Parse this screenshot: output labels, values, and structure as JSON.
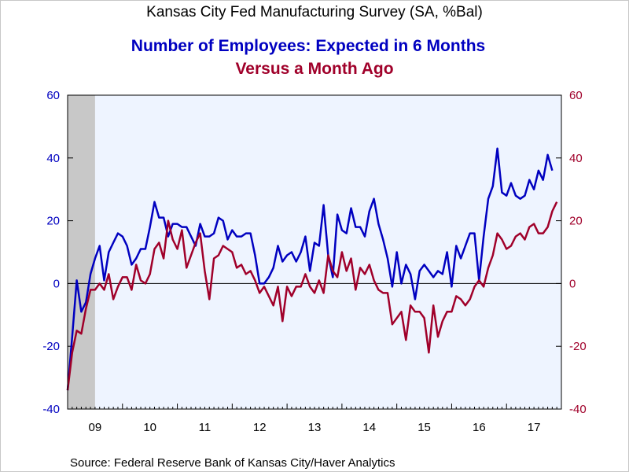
{
  "chart_data": {
    "type": "line",
    "title": "Kansas City Fed Manufacturing Survey (SA, %Bal)",
    "source": "Source:  Federal Reserve Bank of Kansas City/Haver Analytics",
    "x_start": "2009-01",
    "frequency": "monthly",
    "xlim": [
      "2009-01",
      "2017-12"
    ],
    "ylim": [
      -40,
      60
    ],
    "yticks": [
      -40,
      -20,
      0,
      20,
      40,
      60
    ],
    "left_tick_labels": [
      "-40",
      "-20",
      "0",
      "20",
      "40",
      "60"
    ],
    "right_tick_labels": [
      "-40",
      "-20",
      "0",
      "20",
      "40",
      "60"
    ],
    "x_tick_labels": [
      "09",
      "10",
      "11",
      "12",
      "13",
      "14",
      "15",
      "16",
      "17"
    ],
    "recession_shading": {
      "from": "2009-01",
      "to": "2009-06",
      "color": "#c8c8c8"
    },
    "zero_line": true,
    "plot_background": "#eef4ff",
    "series": [
      {
        "name": "Number of Employees: Expected in 6 Months",
        "color": "#0000c0",
        "axis": "left",
        "values": [
          -34,
          -17,
          1,
          -9,
          -6,
          3,
          8,
          12,
          1,
          10,
          13,
          16,
          15,
          12,
          6,
          8,
          11,
          11,
          18,
          26,
          21,
          21,
          15,
          19,
          19,
          18,
          18,
          15,
          12,
          19,
          15,
          15,
          16,
          21,
          20,
          14,
          17,
          15,
          15,
          16,
          16,
          9,
          0,
          0,
          2,
          5,
          12,
          7,
          9,
          10,
          7,
          10,
          15,
          4,
          13,
          12,
          25,
          9,
          2,
          22,
          17,
          16,
          24,
          18,
          18,
          15,
          23,
          27,
          19,
          14,
          8,
          -1,
          10,
          0,
          6,
          3,
          -5,
          4,
          6,
          4,
          2,
          4,
          3,
          10,
          -1,
          12,
          8,
          12,
          16,
          16,
          1,
          15,
          27,
          31,
          43,
          29,
          28,
          32,
          28,
          27,
          28,
          33,
          30,
          36,
          33,
          41,
          36
        ]
      },
      {
        "name": "Versus a Month Ago",
        "color": "#a0002a",
        "axis": "left",
        "values": [
          -34,
          -22,
          -15,
          -16,
          -8,
          -2,
          -2,
          0,
          -2,
          3,
          -5,
          -1,
          2,
          2,
          -2,
          6,
          1,
          0,
          3,
          11,
          13,
          8,
          20,
          14,
          11,
          17,
          5,
          9,
          13,
          16,
          4,
          -5,
          8,
          9,
          12,
          11,
          10,
          5,
          6,
          3,
          4,
          1,
          -3,
          -1,
          -4,
          -7,
          -1,
          -12,
          -1,
          -4,
          -1,
          -1,
          3,
          -1,
          -3,
          1,
          -3,
          9,
          4,
          2,
          10,
          4,
          8,
          -2,
          5,
          3,
          6,
          1,
          -2,
          -3,
          -3,
          -13,
          -11,
          -9,
          -18,
          -7,
          -9,
          -9,
          -11,
          -22,
          -7,
          -17,
          -12,
          -9,
          -9,
          -4,
          -5,
          -7,
          -5,
          -1,
          1,
          -1,
          5,
          9,
          16,
          14,
          11,
          12,
          15,
          16,
          14,
          18,
          19,
          16,
          16,
          18,
          23,
          26
        ]
      }
    ]
  }
}
